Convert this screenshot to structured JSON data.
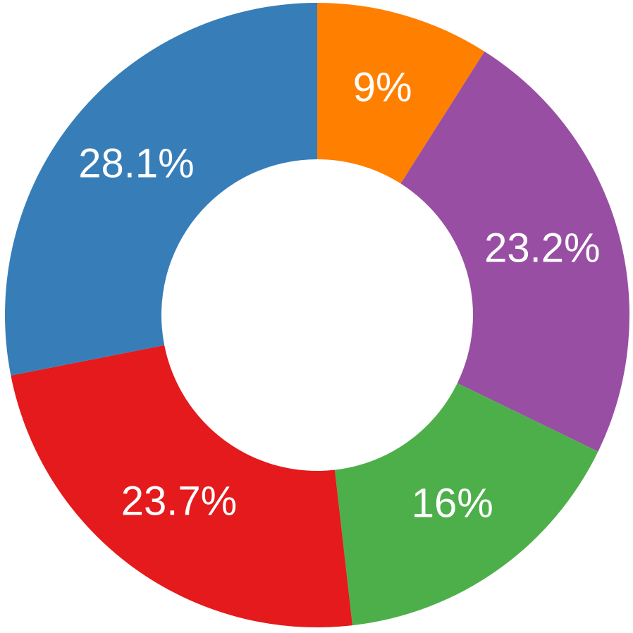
{
  "chart_data": {
    "type": "donut",
    "values": [
      9,
      23.2,
      16,
      23.7,
      28.1
    ],
    "value_labels": [
      "9%",
      "23.2%",
      "16%",
      "23.7%",
      "28.1%"
    ],
    "colors": [
      "#ff7f00",
      "#984ea3",
      "#4daf4a",
      "#e41a1c",
      "#377eb8"
    ]
  }
}
